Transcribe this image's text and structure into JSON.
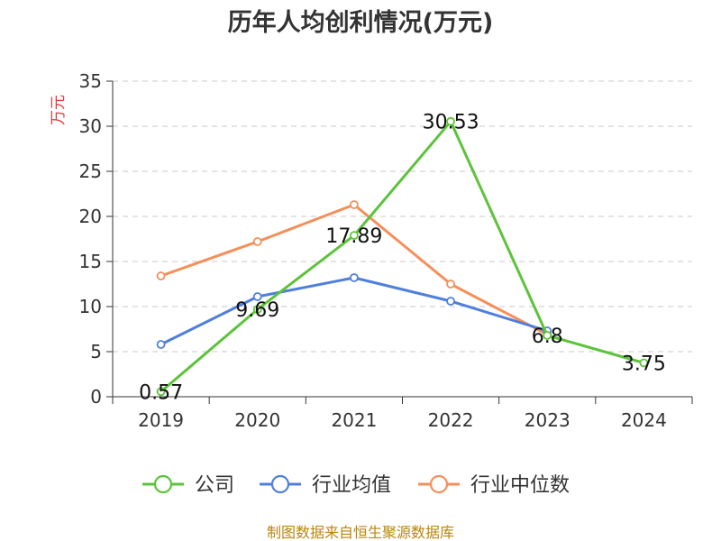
{
  "chart_data": {
    "type": "line",
    "title": "历年人均创利情况(万元)",
    "ylabel": "万元",
    "xlabel": "",
    "ylim": [
      0,
      35
    ],
    "yticks": [
      0,
      5,
      10,
      15,
      20,
      25,
      30,
      35
    ],
    "categories": [
      "2019",
      "2020",
      "2021",
      "2022",
      "2023",
      "2024"
    ],
    "grid": true,
    "legend_position": "bottom",
    "series": [
      {
        "name": "公司",
        "color": "#5cc33a",
        "values": [
          0.57,
          9.69,
          17.89,
          30.53,
          6.8,
          3.75
        ],
        "labels": [
          "0.57",
          "9.69",
          "17.89",
          "30.53",
          "6.8",
          "3.75"
        ]
      },
      {
        "name": "行业均值",
        "color": "#4f7fdc",
        "values": [
          5.8,
          11.1,
          13.2,
          10.6,
          7.3,
          null
        ],
        "labels": []
      },
      {
        "name": "行业中位数",
        "color": "#f58f5a",
        "values": [
          13.4,
          17.2,
          21.3,
          12.5,
          6.9,
          null
        ],
        "labels": []
      }
    ],
    "source": "制图数据来自恒生聚源数据库"
  }
}
